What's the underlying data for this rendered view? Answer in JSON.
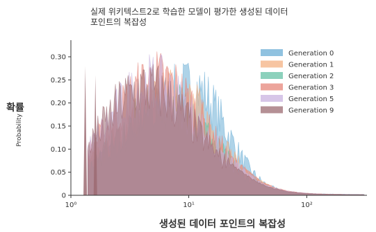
{
  "chart_data": {
    "type": "area",
    "title_lines": [
      "실제 위키텍스트2로 학습한 모델이 평가한 생성된 데이터",
      "포인트의 복잡성"
    ],
    "xlabel": "생성된 데이터 포인트의 복잡성",
    "ylabel": "확률",
    "ylabel_secondary": "Probability",
    "x_scale": "log",
    "xlim": [
      1,
      18
    ],
    "ylim": [
      0,
      0.33
    ],
    "yticks": [
      0,
      0.05,
      0.1,
      0.15,
      0.2,
      0.25,
      0.3
    ],
    "ytick_labels": [
      "0",
      "0.05",
      "0.10",
      "0.15",
      "0.20",
      "0.25",
      "0.30"
    ],
    "xticks": [
      1,
      3.16,
      10
    ],
    "xtick_labels": [
      "10⁰",
      "10¹",
      "10²"
    ],
    "legend_position": "upper-right",
    "series": [
      {
        "name": "Generation 0",
        "color": "#6baed6",
        "peak_x": 3.3,
        "peak_y": 0.29,
        "left_w": 0.26,
        "right_w": 0.14
      },
      {
        "name": "Generation 1",
        "color": "#f4b183",
        "peak_x": 2.8,
        "peak_y": 0.27,
        "left_w": 0.24,
        "right_w": 0.17
      },
      {
        "name": "Generation 2",
        "color": "#66c2a5",
        "peak_x": 2.6,
        "peak_y": 0.25,
        "left_w": 0.22,
        "right_w": 0.18
      },
      {
        "name": "Generation 3",
        "color": "#e5857a",
        "peak_x": 2.35,
        "peak_y": 0.31,
        "left_w": 0.21,
        "right_w": 0.2
      },
      {
        "name": "Generation 5",
        "color": "#c9b3e0",
        "peak_x": 2.2,
        "peak_y": 0.3,
        "left_w": 0.2,
        "right_w": 0.21
      },
      {
        "name": "Generation 9",
        "color": "#9c6b72",
        "peak_x": 2.05,
        "peak_y": 0.29,
        "left_w": 0.19,
        "right_w": 0.22
      }
    ],
    "spikes": [
      {
        "x": 1.15,
        "y": 0.28,
        "color": "#9c6b72"
      },
      {
        "x": 1.27,
        "y": 0.26,
        "color": "#9c6b72"
      }
    ]
  }
}
